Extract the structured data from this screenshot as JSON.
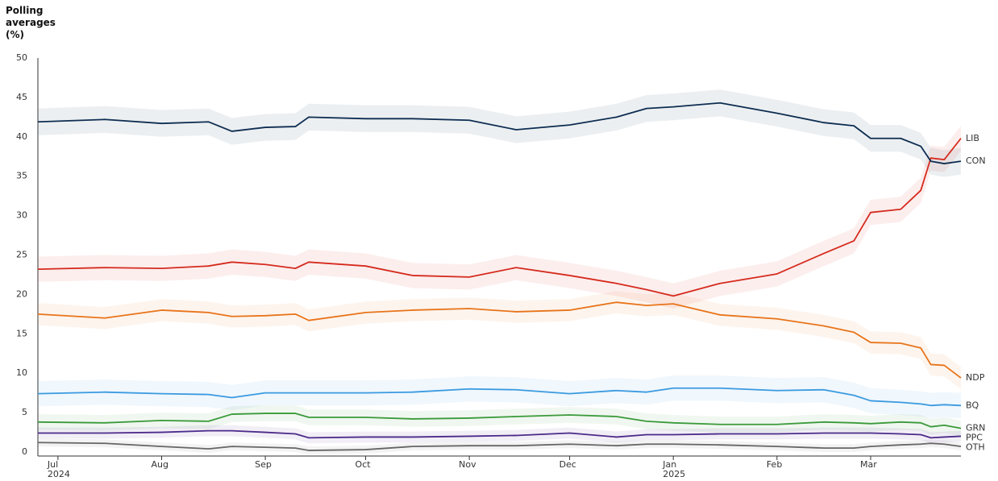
{
  "chart_data": {
    "type": "line",
    "y_label": "Polling averages (%)",
    "x": [
      "2024-06-25",
      "2024-07-15",
      "2024-08-01",
      "2024-08-15",
      "2024-08-22",
      "2024-09-01",
      "2024-09-10",
      "2024-09-14",
      "2024-10-01",
      "2024-10-15",
      "2024-11-01",
      "2024-11-15",
      "2024-12-01",
      "2024-12-15",
      "2024-12-24",
      "2025-01-01",
      "2025-01-15",
      "2025-02-01",
      "2025-02-15",
      "2025-02-24",
      "2025-03-01",
      "2025-03-10",
      "2025-03-16",
      "2025-03-19",
      "2025-03-23",
      "2025-03-28"
    ],
    "xlim": [
      "2024-06-25",
      "2025-03-28"
    ],
    "xticks": [
      {
        "value": "2024-07-01",
        "label": "Jul"
      },
      {
        "value": "2024-08-01",
        "label": "Aug"
      },
      {
        "value": "2024-09-01",
        "label": "Sep"
      },
      {
        "value": "2024-10-01",
        "label": "Oct"
      },
      {
        "value": "2024-11-01",
        "label": "Nov"
      },
      {
        "value": "2024-12-01",
        "label": "Dec"
      },
      {
        "value": "2025-01-01",
        "label": "Jan"
      },
      {
        "value": "2025-02-01",
        "label": "Feb"
      },
      {
        "value": "2025-03-01",
        "label": "Mar"
      }
    ],
    "xtick_years": [
      {
        "value": "2024-07-01",
        "label": "2024"
      },
      {
        "value": "2025-01-01",
        "label": "2025"
      }
    ],
    "ylim": [
      0,
      50
    ],
    "yticks": [
      0,
      5,
      10,
      15,
      20,
      25,
      30,
      35,
      40,
      45,
      50
    ],
    "grid": false,
    "series": [
      {
        "name": "LIB",
        "color": "#d52b1e",
        "band": 1.6,
        "values": [
          23.2,
          23.4,
          23.3,
          23.6,
          24.1,
          23.8,
          23.3,
          24.1,
          23.6,
          22.4,
          22.2,
          23.4,
          22.4,
          21.4,
          20.6,
          19.8,
          21.4,
          22.6,
          25.2,
          26.8,
          30.4,
          30.8,
          33.2,
          37.3,
          37.1,
          39.8
        ]
      },
      {
        "name": "CON",
        "color": "#0d2d52",
        "band": 1.7,
        "values": [
          41.9,
          42.2,
          41.7,
          41.9,
          40.7,
          41.2,
          41.3,
          42.5,
          42.3,
          42.3,
          42.1,
          40.9,
          41.5,
          42.5,
          43.6,
          43.8,
          44.3,
          43.0,
          41.8,
          41.4,
          39.8,
          39.8,
          38.8,
          36.9,
          36.6,
          36.9
        ]
      },
      {
        "name": "NDP",
        "color": "#e8741a",
        "band": 1.4,
        "values": [
          17.5,
          17.0,
          18.0,
          17.7,
          17.2,
          17.3,
          17.5,
          16.7,
          17.7,
          18.0,
          18.2,
          17.8,
          18.0,
          19.0,
          18.6,
          18.8,
          17.4,
          16.9,
          16.0,
          15.2,
          13.9,
          13.8,
          13.2,
          11.1,
          11.0,
          9.4
        ]
      },
      {
        "name": "BQ",
        "color": "#3a9ae0",
        "band": 1.6,
        "values": [
          7.4,
          7.6,
          7.4,
          7.3,
          6.9,
          7.5,
          7.5,
          7.5,
          7.5,
          7.6,
          8.0,
          7.9,
          7.4,
          7.8,
          7.6,
          8.1,
          8.1,
          7.8,
          7.9,
          7.2,
          6.5,
          6.3,
          6.1,
          5.9,
          6.0,
          5.9
        ]
      },
      {
        "name": "GRN",
        "color": "#3a9a3a",
        "band": 1.0,
        "values": [
          3.8,
          3.7,
          4.0,
          3.9,
          4.8,
          4.9,
          4.9,
          4.4,
          4.4,
          4.2,
          4.3,
          4.5,
          4.7,
          4.5,
          3.9,
          3.7,
          3.5,
          3.5,
          3.8,
          3.7,
          3.6,
          3.8,
          3.7,
          3.2,
          3.4,
          3.0
        ]
      },
      {
        "name": "PPC",
        "color": "#4b2a8a",
        "band": 0.7,
        "values": [
          2.4,
          2.4,
          2.5,
          2.7,
          2.7,
          2.5,
          2.3,
          1.8,
          1.9,
          1.9,
          2.0,
          2.1,
          2.4,
          1.9,
          2.2,
          2.2,
          2.3,
          2.3,
          2.4,
          2.4,
          2.4,
          2.3,
          2.2,
          1.8,
          1.9,
          2.0
        ]
      },
      {
        "name": "OTH",
        "color": "#666666",
        "band": 0.5,
        "values": [
          1.2,
          1.1,
          0.7,
          0.4,
          0.7,
          0.6,
          0.5,
          0.2,
          0.3,
          0.7,
          0.8,
          0.8,
          1.0,
          0.8,
          1.0,
          1.0,
          0.9,
          0.7,
          0.5,
          0.5,
          0.7,
          0.9,
          1.0,
          1.1,
          1.0,
          0.7
        ]
      }
    ]
  }
}
